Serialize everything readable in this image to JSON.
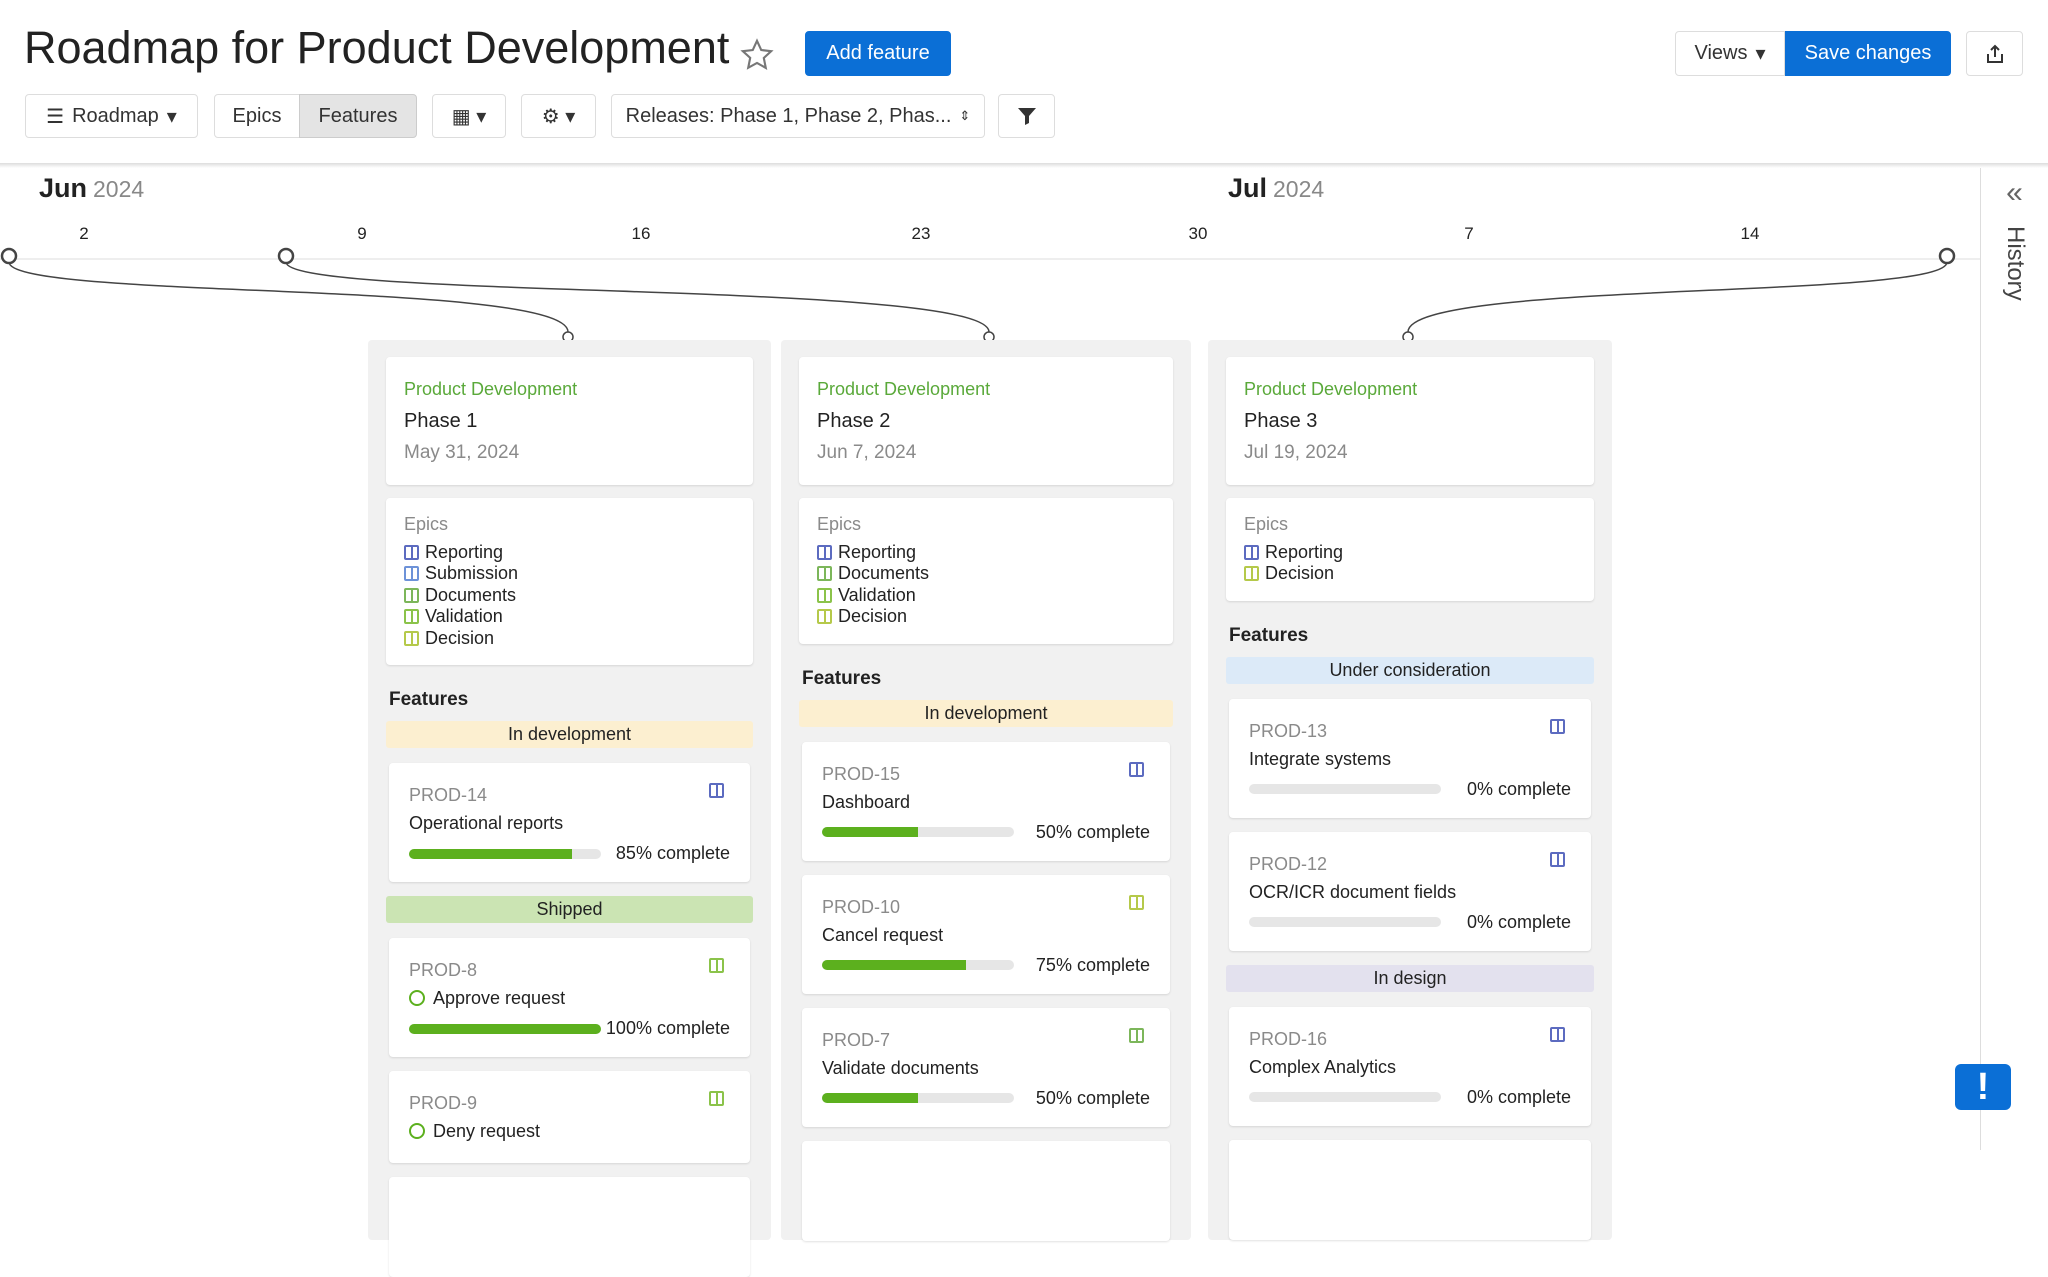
{
  "header": {
    "title": "Roadmap for Product Development",
    "add_feature": "Add feature",
    "views": "Views",
    "save": "Save changes"
  },
  "toolbar": {
    "roadmap": "Roadmap",
    "epics": "Epics",
    "features": "Features",
    "releases": "Releases: Phase 1, Phase 2, Phas..."
  },
  "timeline": {
    "months": [
      {
        "name": "Jun",
        "year": "2024"
      },
      {
        "name": "Jul",
        "year": "2024"
      }
    ],
    "days": [
      "2",
      "9",
      "16",
      "23",
      "30",
      "7",
      "14"
    ]
  },
  "sidebar": {
    "history": "History"
  },
  "columns": [
    {
      "group": "Product Development",
      "name": "Phase 1",
      "date": "May 31, 2024",
      "epics_label": "Epics",
      "epics": [
        {
          "name": "Reporting",
          "color": "#5c6bc0"
        },
        {
          "name": "Submission",
          "color": "#6d92d8"
        },
        {
          "name": "Documents",
          "color": "#7cb65a"
        },
        {
          "name": "Validation",
          "color": "#8bc34a"
        },
        {
          "name": "Decision",
          "color": "#b5c94a"
        }
      ],
      "features_label": "Features",
      "statuses": [
        {
          "name": "In development",
          "color": "#fcefd0",
          "features": [
            {
              "id": "PROD-14",
              "name": "Operational reports",
              "progress": 85,
              "progress_label": "85% complete",
              "icon_color": "#5c6bc0"
            }
          ]
        },
        {
          "name": "Shipped",
          "color": "#cbe4b3",
          "features": [
            {
              "id": "PROD-8",
              "name": "Approve request",
              "done": true,
              "progress": 100,
              "progress_label": "100% complete",
              "icon_color": "#8bc34a"
            },
            {
              "id": "PROD-9",
              "name": "Deny request",
              "done": true,
              "icon_color": "#8bc34a"
            }
          ]
        }
      ]
    },
    {
      "group": "Product Development",
      "name": "Phase 2",
      "date": "Jun 7, 2024",
      "epics_label": "Epics",
      "epics": [
        {
          "name": "Reporting",
          "color": "#5c6bc0"
        },
        {
          "name": "Documents",
          "color": "#7cb65a"
        },
        {
          "name": "Validation",
          "color": "#8bc34a"
        },
        {
          "name": "Decision",
          "color": "#b5c94a"
        }
      ],
      "features_label": "Features",
      "statuses": [
        {
          "name": "In development",
          "color": "#fcefd0",
          "features": [
            {
              "id": "PROD-15",
              "name": "Dashboard",
              "progress": 50,
              "progress_label": "50% complete",
              "icon_color": "#5c6bc0"
            },
            {
              "id": "PROD-10",
              "name": "Cancel request",
              "progress": 75,
              "progress_label": "75% complete",
              "icon_color": "#b5c94a"
            },
            {
              "id": "PROD-7",
              "name": "Validate documents",
              "progress": 50,
              "progress_label": "50% complete",
              "icon_color": "#7cb65a"
            }
          ]
        }
      ]
    },
    {
      "group": "Product Development",
      "name": "Phase 3",
      "date": "Jul 19, 2024",
      "epics_label": "Epics",
      "epics": [
        {
          "name": "Reporting",
          "color": "#5c6bc0"
        },
        {
          "name": "Decision",
          "color": "#b5c94a"
        }
      ],
      "features_label": "Features",
      "statuses": [
        {
          "name": "Under consideration",
          "color": "#dceaf8",
          "features": [
            {
              "id": "PROD-13",
              "name": "Integrate systems",
              "progress": 0,
              "progress_label": "0% complete",
              "icon_color": "#5c6bc0"
            },
            {
              "id": "PROD-12",
              "name": "OCR/ICR document fields",
              "progress": 0,
              "progress_label": "0% complete",
              "icon_color": "#5c6bc0"
            }
          ]
        },
        {
          "name": "In design",
          "color": "#e3e1ee",
          "features": [
            {
              "id": "PROD-16",
              "name": "Complex Analytics",
              "progress": 0,
              "progress_label": "0% complete",
              "icon_color": "#5c6bc0"
            }
          ]
        }
      ]
    }
  ]
}
